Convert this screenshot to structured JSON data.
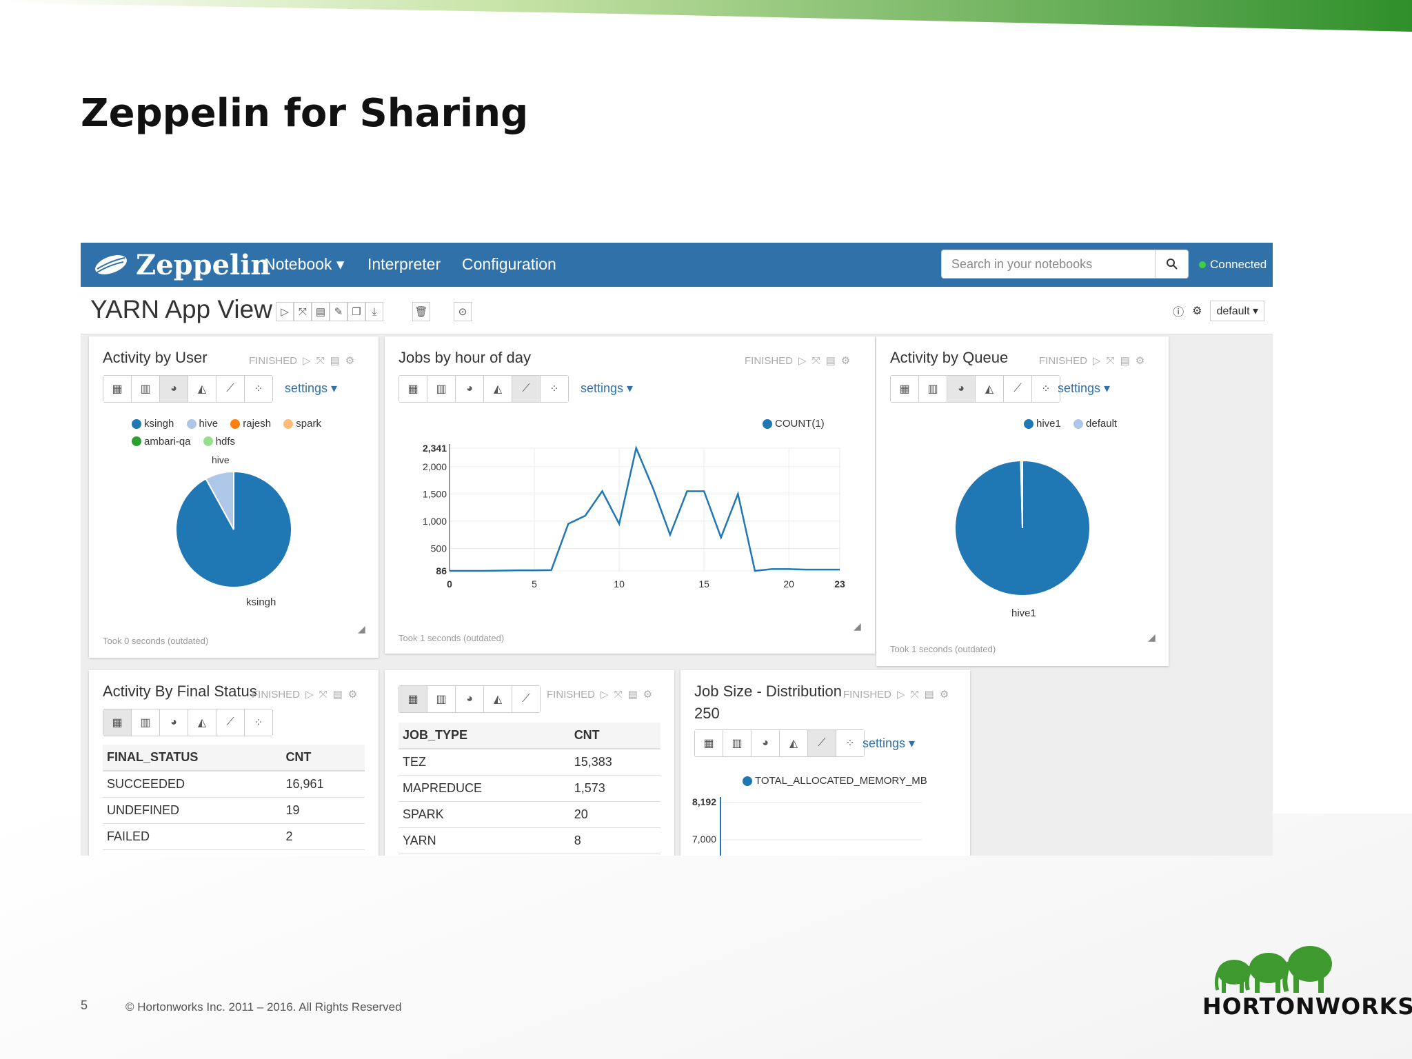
{
  "slide": {
    "title": "Zeppelin for Sharing",
    "page_number": "5",
    "copyright": "© Hortonworks Inc. 2011 – 2016. All Rights Reserved",
    "brand": "HORTONWORKS",
    "accent_color": "#6ab344"
  },
  "navbar": {
    "logo": "Zeppelin",
    "menu": [
      "Notebook ▾",
      "Interpreter",
      "Configuration"
    ],
    "search_placeholder": "Search in your notebooks",
    "status": "Connected",
    "bg_color": "#3071a9"
  },
  "notebook": {
    "title": "YARN App View",
    "interpreter_default": "default ▾"
  },
  "panels": {
    "user": {
      "title": "Activity by User",
      "status": "FINISHED",
      "settings": "settings ▾",
      "took": "Took 0 seconds (outdated)",
      "legend": [
        "ksingh",
        "hive",
        "rajesh",
        "spark",
        "ambari-qa",
        "hdfs"
      ],
      "slice_label_top": "hive",
      "slice_label_bottom": "ksingh"
    },
    "hour": {
      "title": "Jobs by hour of day",
      "status": "FINISHED",
      "settings": "settings ▾",
      "took": "Took 1 seconds (outdated)",
      "legend": "COUNT(1)"
    },
    "queue": {
      "title": "Activity by Queue",
      "status": "FINISHED",
      "settings": "settings ▾",
      "took": "Took 1 seconds (outdated)",
      "legend": [
        "hive1",
        "default"
      ],
      "slice_label": "hive1"
    },
    "final": {
      "title": "Activity By Final Status",
      "status": "FINISHED",
      "columns": [
        "FINAL_STATUS",
        "CNT"
      ],
      "rows": [
        [
          "SUCCEEDED",
          "16,961"
        ],
        [
          "UNDEFINED",
          "19"
        ],
        [
          "FAILED",
          "2"
        ]
      ]
    },
    "jobtype": {
      "status": "FINISHED",
      "columns": [
        "JOB_TYPE",
        "CNT"
      ],
      "rows": [
        [
          "TEZ",
          "15,383"
        ],
        [
          "MAPREDUCE",
          "1,573"
        ],
        [
          "SPARK",
          "20"
        ],
        [
          "YARN",
          "8"
        ]
      ]
    },
    "jobsize": {
      "title": "Job Size - Distribution",
      "subtitle": "250",
      "status": "FINISHED",
      "settings": "settings ▾",
      "legend": "TOTAL_ALLOCATED_MEMORY_MB",
      "ticks": [
        "8,192",
        "7,000"
      ]
    }
  },
  "chart_data": [
    {
      "type": "pie",
      "title": "Activity by User",
      "categories": [
        "ksingh",
        "hive",
        "rajesh",
        "spark",
        "ambari-qa",
        "hdfs"
      ],
      "values": [
        92,
        8,
        0,
        0,
        0,
        0
      ],
      "colors": [
        "#1f77b4",
        "#aec7e8",
        "#ff7f0e",
        "#ffbb78",
        "#2ca02c",
        "#98df8a"
      ]
    },
    {
      "type": "line",
      "title": "Jobs by hour of day",
      "xlabel": "",
      "ylabel": "",
      "series": [
        {
          "name": "COUNT(1)",
          "x": [
            0,
            1,
            2,
            3,
            4,
            5,
            6,
            7,
            8,
            9,
            10,
            11,
            12,
            13,
            14,
            15,
            16,
            17,
            18,
            19,
            20,
            21,
            22,
            23
          ],
          "values": [
            86,
            86,
            86,
            90,
            95,
            95,
            100,
            950,
            1100,
            1550,
            950,
            2341,
            1600,
            750,
            1550,
            1550,
            700,
            1500,
            86,
            120,
            120,
            110,
            110,
            110
          ]
        }
      ],
      "xlim": [
        0,
        23
      ],
      "ylim": [
        86,
        2341
      ],
      "xticks": [
        "0",
        "5",
        "10",
        "15",
        "20",
        "23"
      ],
      "yticks": [
        "86",
        "500",
        "1,000",
        "1,500",
        "2,000",
        "2,341"
      ],
      "color": "#1f77b4"
    },
    {
      "type": "pie",
      "title": "Activity by Queue",
      "categories": [
        "hive1",
        "default"
      ],
      "values": [
        99.6,
        0.4
      ],
      "colors": [
        "#1f77b4",
        "#aec7e8"
      ]
    },
    {
      "type": "table",
      "title": "Activity By Final Status",
      "columns": [
        "FINAL_STATUS",
        "CNT"
      ],
      "rows": [
        [
          "SUCCEEDED",
          16961
        ],
        [
          "UNDEFINED",
          19
        ],
        [
          "FAILED",
          2
        ]
      ]
    },
    {
      "type": "table",
      "columns": [
        "JOB_TYPE",
        "CNT"
      ],
      "rows": [
        [
          "TEZ",
          15383
        ],
        [
          "MAPREDUCE",
          1573
        ],
        [
          "SPARK",
          20
        ],
        [
          "YARN",
          8
        ]
      ]
    }
  ]
}
